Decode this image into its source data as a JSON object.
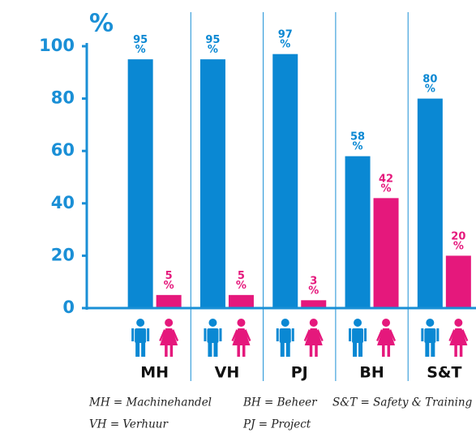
{
  "chart_data": {
    "type": "bar",
    "y_label": "%",
    "categories": [
      "MH",
      "VH",
      "PJ",
      "BH",
      "S&T"
    ],
    "series": [
      {
        "color": "#0a88d3",
        "values": [
          95,
          95,
          97,
          58,
          80
        ],
        "value_labels": [
          "95%",
          "95%",
          "97%",
          "58%",
          "80%"
        ]
      },
      {
        "color": "#e5187c",
        "values": [
          5,
          5,
          3,
          42,
          20
        ],
        "value_labels": [
          "5%",
          "5%",
          "3%",
          "42%",
          "20%"
        ]
      }
    ],
    "ylim": [
      0,
      100
    ],
    "yticks": [
      0,
      20,
      40,
      60,
      80,
      100
    ],
    "notes": [
      "MH = Machinehandel",
      "BH = Beheer",
      "S&T = Safety & Training",
      "VH = Verhuur",
      "PJ = Project"
    ]
  }
}
